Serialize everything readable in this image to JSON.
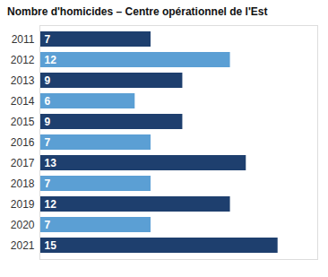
{
  "chart_data": {
    "type": "bar",
    "orientation": "horizontal",
    "title": "Nombre d'homicides – Centre opérationnel de l'Est",
    "categories": [
      "2011",
      "2012",
      "2013",
      "2014",
      "2015",
      "2016",
      "2017",
      "2018",
      "2019",
      "2020",
      "2021"
    ],
    "values": [
      7,
      12,
      9,
      6,
      9,
      7,
      13,
      7,
      12,
      7,
      15
    ],
    "colors": [
      "#1e3f6e",
      "#5b9fd4",
      "#1e3f6e",
      "#5b9fd4",
      "#1e3f6e",
      "#5b9fd4",
      "#1e3f6e",
      "#5b9fd4",
      "#1e3f6e",
      "#5b9fd4",
      "#1e3f6e"
    ],
    "xlim": [
      0,
      17.5
    ],
    "data_labels": true,
    "tick_labels": "y",
    "grid": false
  }
}
